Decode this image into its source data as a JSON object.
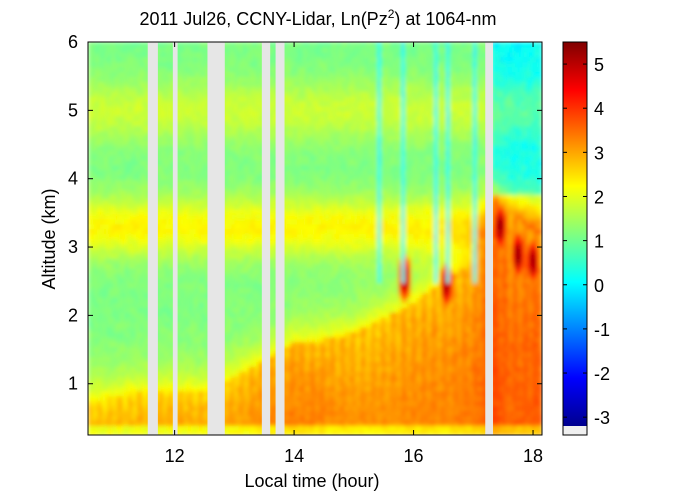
{
  "chart_data": {
    "type": "heatmap",
    "title_main": "2011 Jul26, CCNY-Lidar, Ln(Pz",
    "title_sup": "2",
    "title_tail": ") at 1064-nm",
    "xlabel": "Local time (hour)",
    "ylabel": "Altitude (km)",
    "xlim": [
      10.55,
      18.15
    ],
    "ylim": [
      0.25,
      6.0
    ],
    "xticks": [
      12,
      14,
      16,
      18
    ],
    "yticks": [
      1,
      2,
      3,
      4,
      5,
      6
    ],
    "colorbar": {
      "range": [
        -3.2,
        5.5
      ],
      "ticks": [
        -3,
        -2,
        -1,
        0,
        1,
        2,
        3,
        4,
        5
      ],
      "colors": [
        "#00008f",
        "#0000ff",
        "#0080ff",
        "#00ffff",
        "#80ff80",
        "#ffff00",
        "#ff8000",
        "#ff0000",
        "#800000"
      ]
    },
    "no_data_color": "#e6e6e6",
    "gaps": [
      [
        11.55,
        11.72
      ],
      [
        11.97,
        12.05
      ],
      [
        12.55,
        12.84
      ],
      [
        13.46,
        13.6
      ],
      [
        13.69,
        13.84
      ],
      [
        17.2,
        17.33
      ]
    ],
    "aerosol_layer": {
      "x": [
        10.55,
        11.5,
        12.5,
        13.0,
        13.6,
        14.0,
        14.5,
        15.0,
        15.5,
        16.0,
        16.5,
        17.0,
        17.2,
        17.35,
        17.6,
        17.9,
        18.15
      ],
      "top_km": [
        0.75,
        0.9,
        0.9,
        1.1,
        1.4,
        1.6,
        1.65,
        1.75,
        1.95,
        2.2,
        2.5,
        2.8,
        3.3,
        3.8,
        3.5,
        3.3,
        3.2
      ],
      "value": [
        3.0,
        3.0,
        3.1,
        3.1,
        3.3,
        3.4,
        3.3,
        3.2,
        3.2,
        3.3,
        3.3,
        3.4,
        3.6,
        3.8,
        3.6,
        3.6,
        3.7
      ]
    },
    "elevated_layers": [
      {
        "alt_km": 3.3,
        "value": 2.3
      },
      {
        "alt_km": 5.0,
        "value": 1.8
      }
    ],
    "background_value": 1.1,
    "high_values": [
      {
        "x": 15.85,
        "alt_km": 2.55,
        "value": 5.2
      },
      {
        "x": 16.55,
        "alt_km": 2.45,
        "value": 5.2
      },
      {
        "x": 17.45,
        "alt_km": 3.3,
        "value": 5.4
      },
      {
        "x": 17.75,
        "alt_km": 2.9,
        "value": 5.4
      },
      {
        "x": 18.0,
        "alt_km": 2.8,
        "value": 5.3
      }
    ],
    "low_signal_streaks": [
      15.4,
      15.85,
      16.35,
      16.55,
      17.0
    ]
  }
}
